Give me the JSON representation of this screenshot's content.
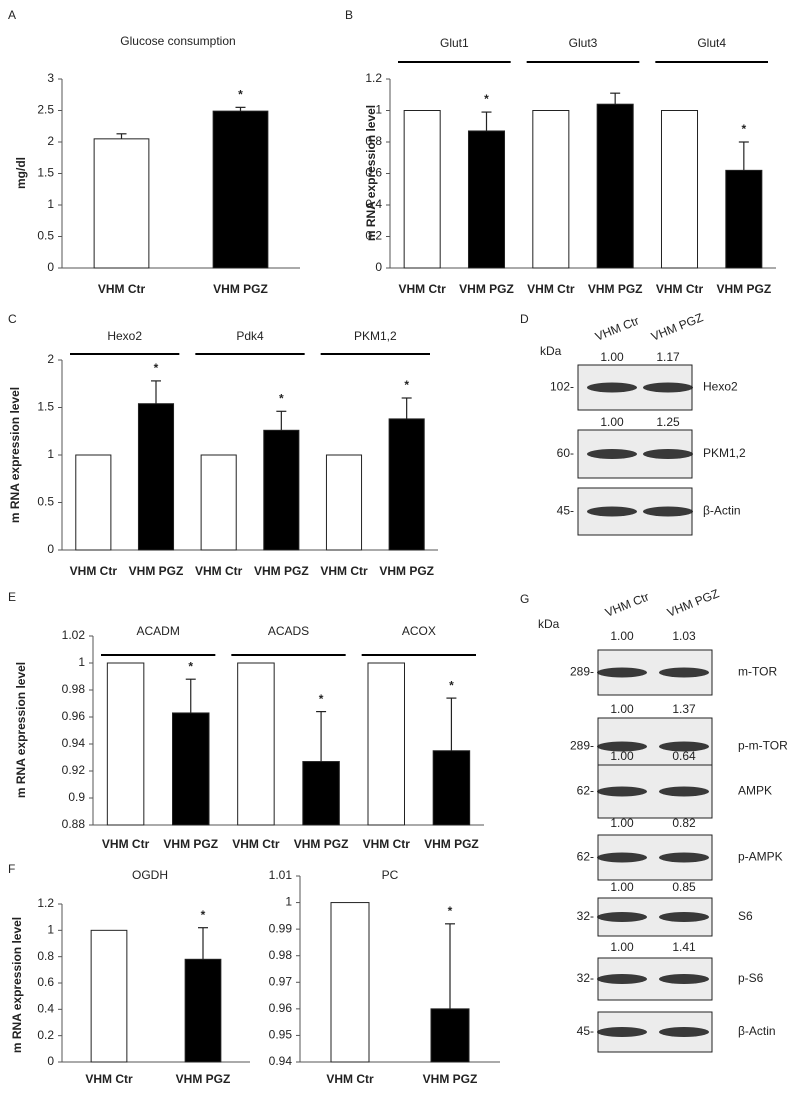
{
  "chart_data": [
    {
      "type": "bar",
      "panel": "A",
      "title": "Glucose consumption",
      "y_label": "mg/dl",
      "categories": [
        "VHM Ctr",
        "VHM PGZ"
      ],
      "colors": [
        "#ffffff",
        "#000000"
      ],
      "values": [
        2.05,
        2.49
      ],
      "errors": [
        0.08,
        0.06
      ],
      "significance": [
        null,
        "*"
      ],
      "ylim": [
        0,
        3
      ],
      "yticks": [
        0,
        0.5,
        1,
        1.5,
        2,
        2.5,
        3
      ]
    },
    {
      "type": "bar",
      "panel": "B",
      "y_label": "m RNA expression level",
      "groups": [
        "Glut1",
        "Glut3",
        "Glut4"
      ],
      "series": [
        {
          "name": "VHM Ctr",
          "color": "#ffffff",
          "values": [
            1,
            1,
            1
          ]
        },
        {
          "name": "VHM PGZ",
          "color": "#000000",
          "values": [
            0.87,
            1.04,
            0.62
          ],
          "errors": [
            0.12,
            0.07,
            0.18
          ],
          "significance": [
            "*",
            null,
            "*"
          ]
        }
      ],
      "ylim": [
        0,
        1.2
      ],
      "yticks": [
        0,
        0.2,
        0.4,
        0.6,
        0.8,
        1,
        1.2
      ]
    },
    {
      "type": "bar",
      "panel": "C",
      "y_label": "m RNA expression level",
      "groups": [
        "Hexo2",
        "Pdk4",
        "PKM1,2"
      ],
      "series": [
        {
          "name": "VHM Ctr",
          "color": "#ffffff",
          "values": [
            1,
            1,
            1
          ]
        },
        {
          "name": "VHM PGZ",
          "color": "#000000",
          "values": [
            1.54,
            1.26,
            1.38
          ],
          "errors": [
            0.24,
            0.2,
            0.22
          ],
          "significance": [
            "*",
            "*",
            "*"
          ]
        }
      ],
      "ylim": [
        0,
        2
      ],
      "yticks": [
        0,
        0.5,
        1,
        1.5,
        2
      ]
    },
    {
      "type": "bar",
      "panel": "E",
      "y_label": "m RNA expression level",
      "groups": [
        "ACADM",
        "ACADS",
        "ACOX"
      ],
      "series": [
        {
          "name": "VHM Ctr",
          "color": "#ffffff",
          "values": [
            1,
            1,
            1
          ]
        },
        {
          "name": "VHM PGZ",
          "color": "#000000",
          "values": [
            0.963,
            0.927,
            0.935
          ],
          "errors": [
            0.025,
            0.037,
            0.039
          ],
          "significance": [
            "*",
            "*",
            "*"
          ]
        }
      ],
      "ylim": [
        0.88,
        1.02
      ],
      "yticks": [
        0.88,
        0.9,
        0.92,
        0.94,
        0.96,
        0.98,
        1,
        1.02
      ]
    },
    {
      "type": "bar",
      "panel": "F",
      "title": "OGDH",
      "y_label": "m RNA expression level",
      "categories": [
        "VHM Ctr",
        "VHM PGZ"
      ],
      "colors": [
        "#ffffff",
        "#000000"
      ],
      "values": [
        1,
        0.78
      ],
      "errors": [
        null,
        0.24
      ],
      "significance": [
        null,
        "*"
      ],
      "ylim": [
        0,
        1.2
      ],
      "yticks": [
        0,
        0.2,
        0.4,
        0.6,
        0.8,
        1,
        1.2
      ]
    },
    {
      "type": "bar",
      "title": "PC",
      "categories": [
        "VHM Ctr",
        "VHM PGZ"
      ],
      "colors": [
        "#ffffff",
        "#000000"
      ],
      "values": [
        1,
        0.96
      ],
      "errors": [
        null,
        0.032
      ],
      "significance": [
        null,
        "*"
      ],
      "ylim": [
        0.94,
        1.01
      ],
      "yticks": [
        0.94,
        0.95,
        0.96,
        0.97,
        0.98,
        0.99,
        1,
        1.01
      ]
    }
  ],
  "blots": [
    {
      "panel": "D",
      "kda_label": "kDa",
      "columns": [
        "VHM Ctr",
        "VHM PGZ"
      ],
      "rows": [
        {
          "kda": "102-",
          "protein": "Hexo2",
          "quant": [
            "1.00",
            "1.17"
          ]
        },
        {
          "kda": "60-",
          "protein": "PKM1,2",
          "quant": [
            "1.00",
            "1.25"
          ]
        },
        {
          "kda": "45-",
          "protein": "β-Actin"
        }
      ]
    },
    {
      "panel": "G",
      "kda_label": "kDa",
      "columns": [
        "VHM Ctr",
        "VHM PGZ"
      ],
      "rows": [
        {
          "kda": "289-",
          "protein": "m-TOR",
          "quant": [
            "1.00",
            "1.03"
          ]
        },
        {
          "kda": "289-",
          "protein": "p-m-TOR",
          "quant": [
            "1.00",
            "1.37"
          ]
        },
        {
          "kda": "62-",
          "protein": "AMPK",
          "quant": [
            "1.00",
            "0.64"
          ]
        },
        {
          "kda": "62-",
          "protein": "p-AMPK",
          "quant": [
            "1.00",
            "0.82"
          ]
        },
        {
          "kda": "32-",
          "protein": "S6",
          "quant": [
            "1.00",
            "0.85"
          ]
        },
        {
          "kda": "32-",
          "protein": "p-S6",
          "quant": [
            "1.00",
            "1.41"
          ]
        },
        {
          "kda": "45-",
          "protein": "β-Actin"
        }
      ]
    }
  ]
}
